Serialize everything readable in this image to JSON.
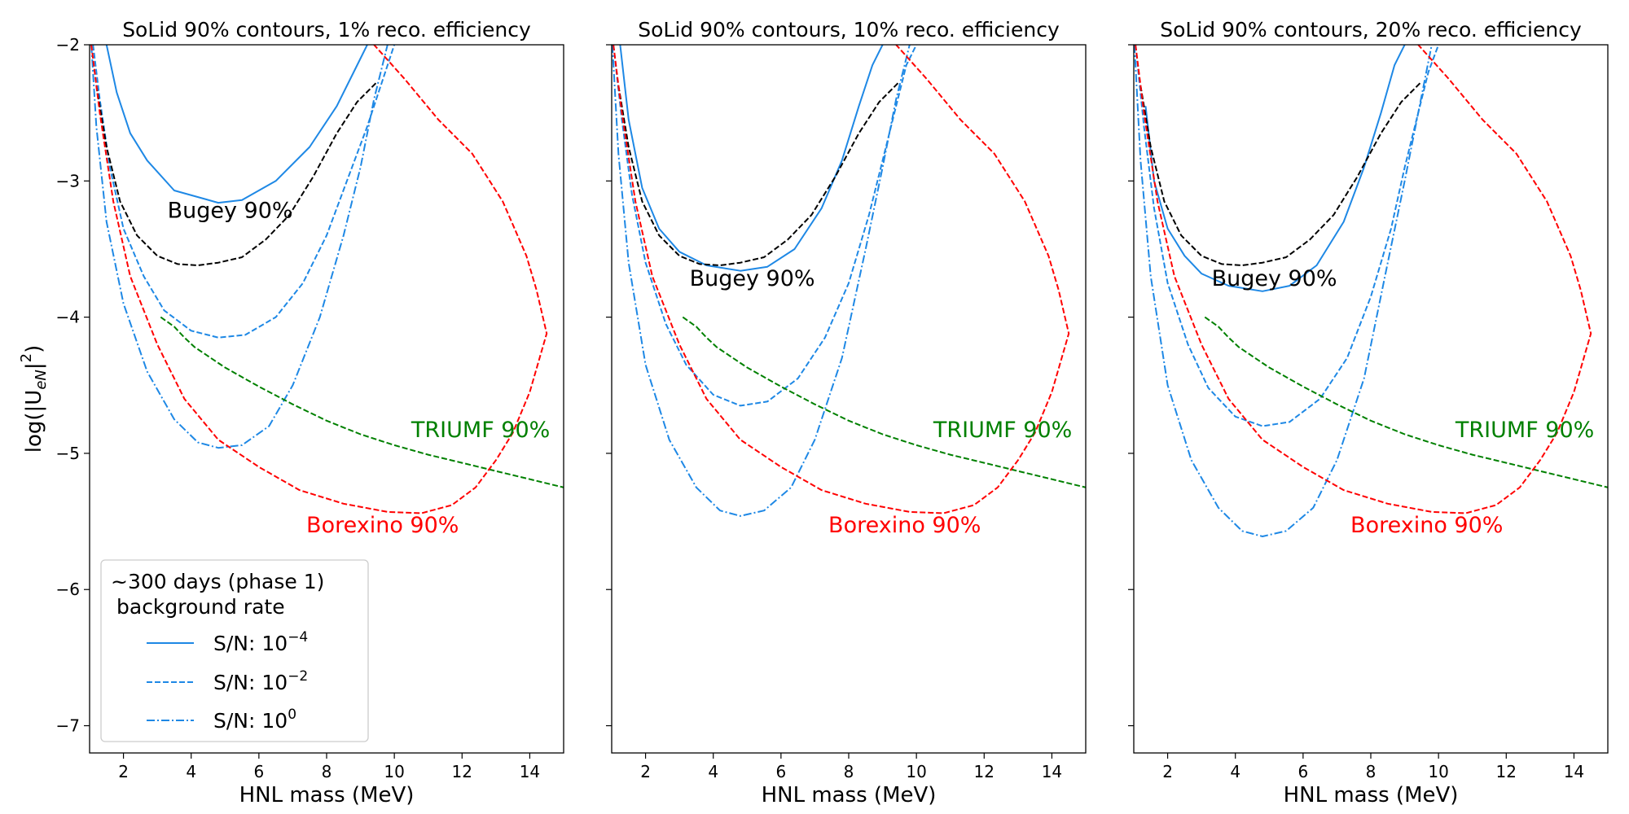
{
  "figure": {
    "ylabel": "log(|U_eN|²)",
    "legend": {
      "title_line1": "~300 days (phase 1)",
      "title_line2": "background rate",
      "entries": [
        {
          "label": "S/N: 10",
          "exp": "−4",
          "style": "solid",
          "color": "#1e88e5"
        },
        {
          "label": "S/N: 10",
          "exp": "−2",
          "style": "dashed",
          "color": "#1e88e5"
        },
        {
          "label": "S/N: 10",
          "exp": "0",
          "style": "dashdot",
          "color": "#1e88e5"
        }
      ]
    }
  },
  "chart_data": [
    {
      "type": "line",
      "title": "SoLid 90% contours, 1% reco. efficiency",
      "xlabel": "HNL mass (MeV)",
      "ylabel": "log(|U_eN|²)",
      "xlim": [
        1,
        15
      ],
      "ylim": [
        -7.2,
        -2
      ],
      "xticks": [
        2,
        4,
        6,
        8,
        10,
        12,
        14
      ],
      "yticks": [
        -7,
        -6,
        -5,
        -4,
        -3,
        -2
      ],
      "grid": false,
      "annotations": [
        {
          "text": "Bugey 90%",
          "x": 3.3,
          "y": -3.27,
          "color": "#000000"
        },
        {
          "text": "TRIUMF 90%",
          "x": 10.5,
          "y": -4.88,
          "color": "#008000"
        },
        {
          "text": "Borexino 90%",
          "x": 7.4,
          "y": -5.58,
          "color": "#ff0000"
        }
      ],
      "series": [
        {
          "name": "S/N: 10^-4",
          "color": "#1e88e5",
          "style": "solid",
          "x": [
            1.5,
            1.8,
            2.2,
            2.7,
            3.5,
            4.8,
            5.5,
            6.5,
            7.5,
            8.3,
            8.8,
            9.2
          ],
          "y": [
            -2.0,
            -2.35,
            -2.65,
            -2.85,
            -3.07,
            -3.16,
            -3.14,
            -3.0,
            -2.75,
            -2.45,
            -2.2,
            -2.0
          ]
        },
        {
          "name": "S/N: 10^-2",
          "color": "#1e88e5",
          "style": "dashed",
          "x": [
            1.1,
            1.3,
            1.6,
            2.0,
            2.6,
            3.2,
            4.0,
            4.8,
            5.6,
            6.5,
            7.3,
            8.0,
            8.6,
            9.2,
            9.6,
            10.0
          ],
          "y": [
            -2.0,
            -2.4,
            -2.9,
            -3.35,
            -3.7,
            -3.95,
            -4.1,
            -4.15,
            -4.13,
            -4.0,
            -3.75,
            -3.4,
            -3.0,
            -2.6,
            -2.3,
            -2.0
          ]
        },
        {
          "name": "S/N: 10^0",
          "color": "#1e88e5",
          "style": "dashdot",
          "x": [
            1.05,
            1.2,
            1.5,
            2.0,
            2.7,
            3.5,
            4.2,
            4.8,
            5.5,
            6.3,
            7.0,
            7.8,
            8.5,
            9.0,
            9.4,
            9.8
          ],
          "y": [
            -2.0,
            -2.6,
            -3.3,
            -3.9,
            -4.4,
            -4.75,
            -4.92,
            -4.96,
            -4.94,
            -4.8,
            -4.5,
            -4.0,
            -3.4,
            -2.9,
            -2.4,
            -2.0
          ]
        },
        {
          "name": "Bugey 90%",
          "color": "#000000",
          "style": "dashed",
          "x": [
            1.2,
            1.5,
            1.9,
            2.4,
            3.0,
            3.6,
            4.2,
            4.8,
            5.5,
            6.2,
            6.9,
            7.6,
            8.3,
            8.9,
            9.5
          ],
          "y": [
            -2.3,
            -2.75,
            -3.15,
            -3.4,
            -3.55,
            -3.61,
            -3.62,
            -3.6,
            -3.56,
            -3.43,
            -3.25,
            -2.97,
            -2.65,
            -2.42,
            -2.27
          ]
        },
        {
          "name": "TRIUMF 90%",
          "color": "#008000",
          "style": "dashed",
          "x": [
            3.1,
            3.5,
            3.8,
            4.1,
            5.0,
            6.0,
            7.0,
            8.0,
            9.0,
            10.0,
            11.0,
            12.0,
            13.0,
            14.0,
            15.0
          ],
          "y": [
            -4.0,
            -4.07,
            -4.15,
            -4.22,
            -4.37,
            -4.51,
            -4.64,
            -4.76,
            -4.86,
            -4.94,
            -5.01,
            -5.07,
            -5.13,
            -5.19,
            -5.25
          ]
        },
        {
          "name": "Borexino 90%",
          "color": "#ff0000",
          "style": "dashed",
          "x": [
            1.05,
            1.3,
            1.7,
            2.2,
            3.0,
            3.8,
            4.8,
            6.0,
            7.2,
            8.5,
            9.8,
            10.8,
            11.7,
            12.4,
            13.0,
            13.5,
            14.0,
            14.5,
            14.2,
            13.9,
            13.2,
            12.3,
            11.3,
            10.3,
            9.4
          ],
          "y": [
            -2.0,
            -2.5,
            -3.15,
            -3.7,
            -4.2,
            -4.6,
            -4.9,
            -5.1,
            -5.27,
            -5.37,
            -5.43,
            -5.44,
            -5.38,
            -5.25,
            -5.05,
            -4.85,
            -4.55,
            -4.12,
            -3.8,
            -3.55,
            -3.15,
            -2.8,
            -2.55,
            -2.25,
            -2.0
          ]
        }
      ]
    },
    {
      "type": "line",
      "title": "SoLid 90% contours, 10% reco. efficiency",
      "xlabel": "HNL mass (MeV)",
      "xlim": [
        1,
        15
      ],
      "ylim": [
        -7.2,
        -2
      ],
      "xticks": [
        2,
        4,
        6,
        8,
        10,
        12,
        14
      ],
      "yticks": [
        -7,
        -6,
        -5,
        -4,
        -3,
        -2
      ],
      "grid": false,
      "annotations": [
        {
          "text": "Bugey 90%",
          "x": 3.3,
          "y": -3.77,
          "color": "#000000"
        },
        {
          "text": "TRIUMF 90%",
          "x": 10.5,
          "y": -4.88,
          "color": "#008000"
        },
        {
          "text": "Borexino 90%",
          "x": 7.4,
          "y": -5.58,
          "color": "#ff0000"
        }
      ],
      "series": [
        {
          "name": "S/N: 10^-4",
          "color": "#1e88e5",
          "style": "solid",
          "x": [
            1.25,
            1.5,
            1.9,
            2.4,
            3.0,
            3.8,
            4.8,
            5.6,
            6.4,
            7.2,
            7.8,
            8.3,
            8.7,
            9.0
          ],
          "y": [
            -2.0,
            -2.55,
            -3.05,
            -3.35,
            -3.52,
            -3.62,
            -3.66,
            -3.63,
            -3.5,
            -3.2,
            -2.85,
            -2.45,
            -2.15,
            -2.0
          ]
        },
        {
          "name": "S/N: 10^-2",
          "color": "#1e88e5",
          "style": "dashed",
          "x": [
            1.05,
            1.3,
            1.6,
            2.0,
            2.6,
            3.2,
            4.0,
            4.8,
            5.6,
            6.5,
            7.3,
            8.0,
            8.6,
            9.0,
            9.4,
            9.7,
            10.0
          ],
          "y": [
            -2.0,
            -2.55,
            -3.1,
            -3.6,
            -4.05,
            -4.35,
            -4.57,
            -4.65,
            -4.62,
            -4.45,
            -4.15,
            -3.75,
            -3.25,
            -2.85,
            -2.45,
            -2.15,
            -2.0
          ]
        },
        {
          "name": "S/N: 10^0",
          "color": "#1e88e5",
          "style": "dashdot",
          "x": [
            1.02,
            1.2,
            1.5,
            2.0,
            2.7,
            3.5,
            4.2,
            4.8,
            5.5,
            6.3,
            7.0,
            7.8,
            8.5,
            9.0,
            9.4,
            9.8
          ],
          "y": [
            -2.0,
            -2.8,
            -3.6,
            -4.35,
            -4.9,
            -5.25,
            -5.42,
            -5.46,
            -5.42,
            -5.25,
            -4.9,
            -4.3,
            -3.5,
            -2.9,
            -2.4,
            -2.0
          ]
        },
        {
          "name": "Bugey 90%",
          "color": "#000000",
          "style": "dashed",
          "x": [
            1.2,
            1.5,
            1.9,
            2.4,
            3.0,
            3.6,
            4.2,
            4.8,
            5.5,
            6.2,
            6.9,
            7.6,
            8.3,
            8.9,
            9.5
          ],
          "y": [
            -2.3,
            -2.75,
            -3.15,
            -3.4,
            -3.55,
            -3.61,
            -3.62,
            -3.6,
            -3.56,
            -3.43,
            -3.25,
            -2.97,
            -2.65,
            -2.42,
            -2.27
          ]
        },
        {
          "name": "TRIUMF 90%",
          "color": "#008000",
          "style": "dashed",
          "x": [
            3.1,
            3.5,
            3.8,
            4.1,
            5.0,
            6.0,
            7.0,
            8.0,
            9.0,
            10.0,
            11.0,
            12.0,
            13.0,
            14.0,
            15.0
          ],
          "y": [
            -4.0,
            -4.07,
            -4.15,
            -4.22,
            -4.37,
            -4.51,
            -4.64,
            -4.76,
            -4.86,
            -4.94,
            -5.01,
            -5.07,
            -5.13,
            -5.19,
            -5.25
          ]
        },
        {
          "name": "Borexino 90%",
          "color": "#ff0000",
          "style": "dashed",
          "x": [
            1.05,
            1.3,
            1.7,
            2.2,
            3.0,
            3.8,
            4.8,
            6.0,
            7.2,
            8.5,
            9.8,
            10.8,
            11.7,
            12.4,
            13.0,
            13.5,
            14.0,
            14.5,
            14.2,
            13.9,
            13.2,
            12.3,
            11.3,
            10.3,
            9.4
          ],
          "y": [
            -2.0,
            -2.5,
            -3.15,
            -3.7,
            -4.2,
            -4.6,
            -4.9,
            -5.1,
            -5.27,
            -5.37,
            -5.43,
            -5.44,
            -5.38,
            -5.25,
            -5.05,
            -4.85,
            -4.55,
            -4.12,
            -3.8,
            -3.55,
            -3.15,
            -2.8,
            -2.55,
            -2.25,
            -2.0
          ]
        }
      ]
    },
    {
      "type": "line",
      "title": "SoLid 90% contours, 20% reco. efficiency",
      "xlabel": "HNL mass (MeV)",
      "xlim": [
        1,
        15
      ],
      "ylim": [
        -7.2,
        -2
      ],
      "xticks": [
        2,
        4,
        6,
        8,
        10,
        12,
        14
      ],
      "yticks": [
        -7,
        -6,
        -5,
        -4,
        -3,
        -2
      ],
      "grid": false,
      "annotations": [
        {
          "text": "Bugey 90%",
          "x": 3.3,
          "y": -3.77,
          "color": "#000000"
        },
        {
          "text": "TRIUMF 90%",
          "x": 10.5,
          "y": -4.88,
          "color": "#008000"
        },
        {
          "text": "Borexino 90%",
          "x": 7.4,
          "y": -5.58,
          "color": "#ff0000"
        }
      ],
      "series": [
        {
          "name": "S/N: 10^-4",
          "color": "#1e88e5",
          "style": "solid",
          "x": [
            1.35,
            1.6,
            2.0,
            2.5,
            3.0,
            3.8,
            4.8,
            5.6,
            6.4,
            7.2,
            7.8,
            8.3,
            8.7,
            9.0
          ],
          "y": [
            -2.45,
            -3.0,
            -3.35,
            -3.55,
            -3.68,
            -3.77,
            -3.81,
            -3.77,
            -3.62,
            -3.3,
            -2.9,
            -2.5,
            -2.15,
            -2.0
          ]
        },
        {
          "name": "S/N: 10^-2",
          "color": "#1e88e5",
          "style": "dashed",
          "x": [
            1.05,
            1.3,
            1.6,
            2.0,
            2.6,
            3.2,
            4.0,
            4.8,
            5.6,
            6.5,
            7.3,
            8.0,
            8.6,
            9.0,
            9.4,
            9.7,
            10.0
          ],
          "y": [
            -2.0,
            -2.6,
            -3.2,
            -3.75,
            -4.2,
            -4.52,
            -4.73,
            -4.8,
            -4.77,
            -4.6,
            -4.3,
            -3.85,
            -3.35,
            -2.9,
            -2.5,
            -2.2,
            -2.0
          ]
        },
        {
          "name": "S/N: 10^0",
          "color": "#1e88e5",
          "style": "dashdot",
          "x": [
            1.02,
            1.2,
            1.5,
            2.0,
            2.7,
            3.5,
            4.2,
            4.8,
            5.5,
            6.3,
            7.0,
            7.8,
            8.5,
            9.0,
            9.4,
            9.8
          ],
          "y": [
            -2.0,
            -2.85,
            -3.7,
            -4.5,
            -5.05,
            -5.4,
            -5.57,
            -5.61,
            -5.57,
            -5.4,
            -5.05,
            -4.45,
            -3.6,
            -3.0,
            -2.5,
            -2.0
          ]
        },
        {
          "name": "Bugey 90%",
          "color": "#000000",
          "style": "dashed",
          "x": [
            1.2,
            1.5,
            1.9,
            2.4,
            3.0,
            3.6,
            4.2,
            4.8,
            5.5,
            6.2,
            6.9,
            7.6,
            8.3,
            8.9,
            9.5
          ],
          "y": [
            -2.3,
            -2.75,
            -3.15,
            -3.4,
            -3.55,
            -3.61,
            -3.62,
            -3.6,
            -3.56,
            -3.43,
            -3.25,
            -2.97,
            -2.65,
            -2.42,
            -2.27
          ]
        },
        {
          "name": "TRIUMF 90%",
          "color": "#008000",
          "style": "dashed",
          "x": [
            3.1,
            3.5,
            3.8,
            4.1,
            5.0,
            6.0,
            7.0,
            8.0,
            9.0,
            10.0,
            11.0,
            12.0,
            13.0,
            14.0,
            15.0
          ],
          "y": [
            -4.0,
            -4.07,
            -4.15,
            -4.22,
            -4.37,
            -4.51,
            -4.64,
            -4.76,
            -4.86,
            -4.94,
            -5.01,
            -5.07,
            -5.13,
            -5.19,
            -5.25
          ]
        },
        {
          "name": "Borexino 90%",
          "color": "#ff0000",
          "style": "dashed",
          "x": [
            1.05,
            1.3,
            1.7,
            2.2,
            3.0,
            3.8,
            4.8,
            6.0,
            7.2,
            8.5,
            9.8,
            10.8,
            11.7,
            12.4,
            13.0,
            13.5,
            14.0,
            14.5,
            14.2,
            13.9,
            13.2,
            12.3,
            11.3,
            10.3,
            9.4
          ],
          "y": [
            -2.0,
            -2.5,
            -3.15,
            -3.7,
            -4.2,
            -4.6,
            -4.9,
            -5.1,
            -5.27,
            -5.37,
            -5.43,
            -5.44,
            -5.38,
            -5.25,
            -5.05,
            -4.85,
            -4.55,
            -4.12,
            -3.8,
            -3.55,
            -3.15,
            -2.8,
            -2.55,
            -2.25,
            -2.0
          ]
        }
      ]
    }
  ]
}
